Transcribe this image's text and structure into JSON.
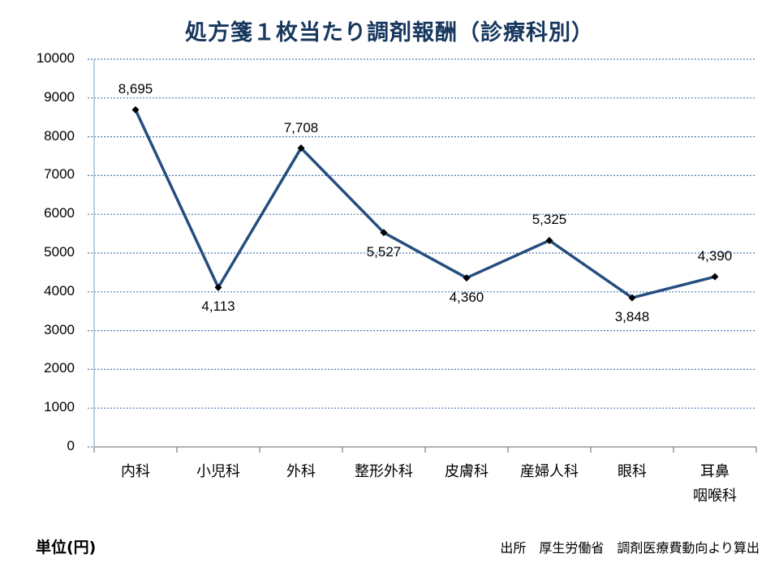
{
  "title": "処方箋１枚当たり調剤報酬（診療科別）",
  "unit_label": "単位(円)",
  "source_label": "出所　厚生労働省　調剤医療費動向より算出",
  "colors": {
    "line": "#254e7f",
    "marker": "#000000",
    "grid": "#4a7ab0",
    "title": "#17375e"
  },
  "chart_data": {
    "type": "line",
    "title": "処方箋１枚当たり調剤報酬（診療科別）",
    "xlabel": "",
    "ylabel": "単位(円)",
    "categories": [
      "内科",
      "小児科",
      "外科",
      "整形外科",
      "皮膚科",
      "産婦人科",
      "眼科",
      "耳鼻咽喉科"
    ],
    "category_labels": [
      [
        "内科"
      ],
      [
        "小児科"
      ],
      [
        "外科"
      ],
      [
        "整形外科"
      ],
      [
        "皮膚科"
      ],
      [
        "産婦人科"
      ],
      [
        "眼科"
      ],
      [
        "耳鼻",
        "咽喉科"
      ]
    ],
    "values": [
      8695,
      4113,
      7708,
      5527,
      4360,
      5325,
      3848,
      4390
    ],
    "data_labels": [
      "8,695",
      "4,113",
      "7,708",
      "5,527",
      "4,360",
      "5,325",
      "3,848",
      "4,390"
    ],
    "label_positions": [
      "above",
      "below",
      "above",
      "below",
      "below",
      "above",
      "below",
      "above"
    ],
    "yticks": [
      "0",
      "1000",
      "2000",
      "3000",
      "4000",
      "5000",
      "6000",
      "7000",
      "8000",
      "9000",
      "10000"
    ],
    "ylim": [
      0,
      10000
    ],
    "grid": true,
    "legend": "none"
  }
}
